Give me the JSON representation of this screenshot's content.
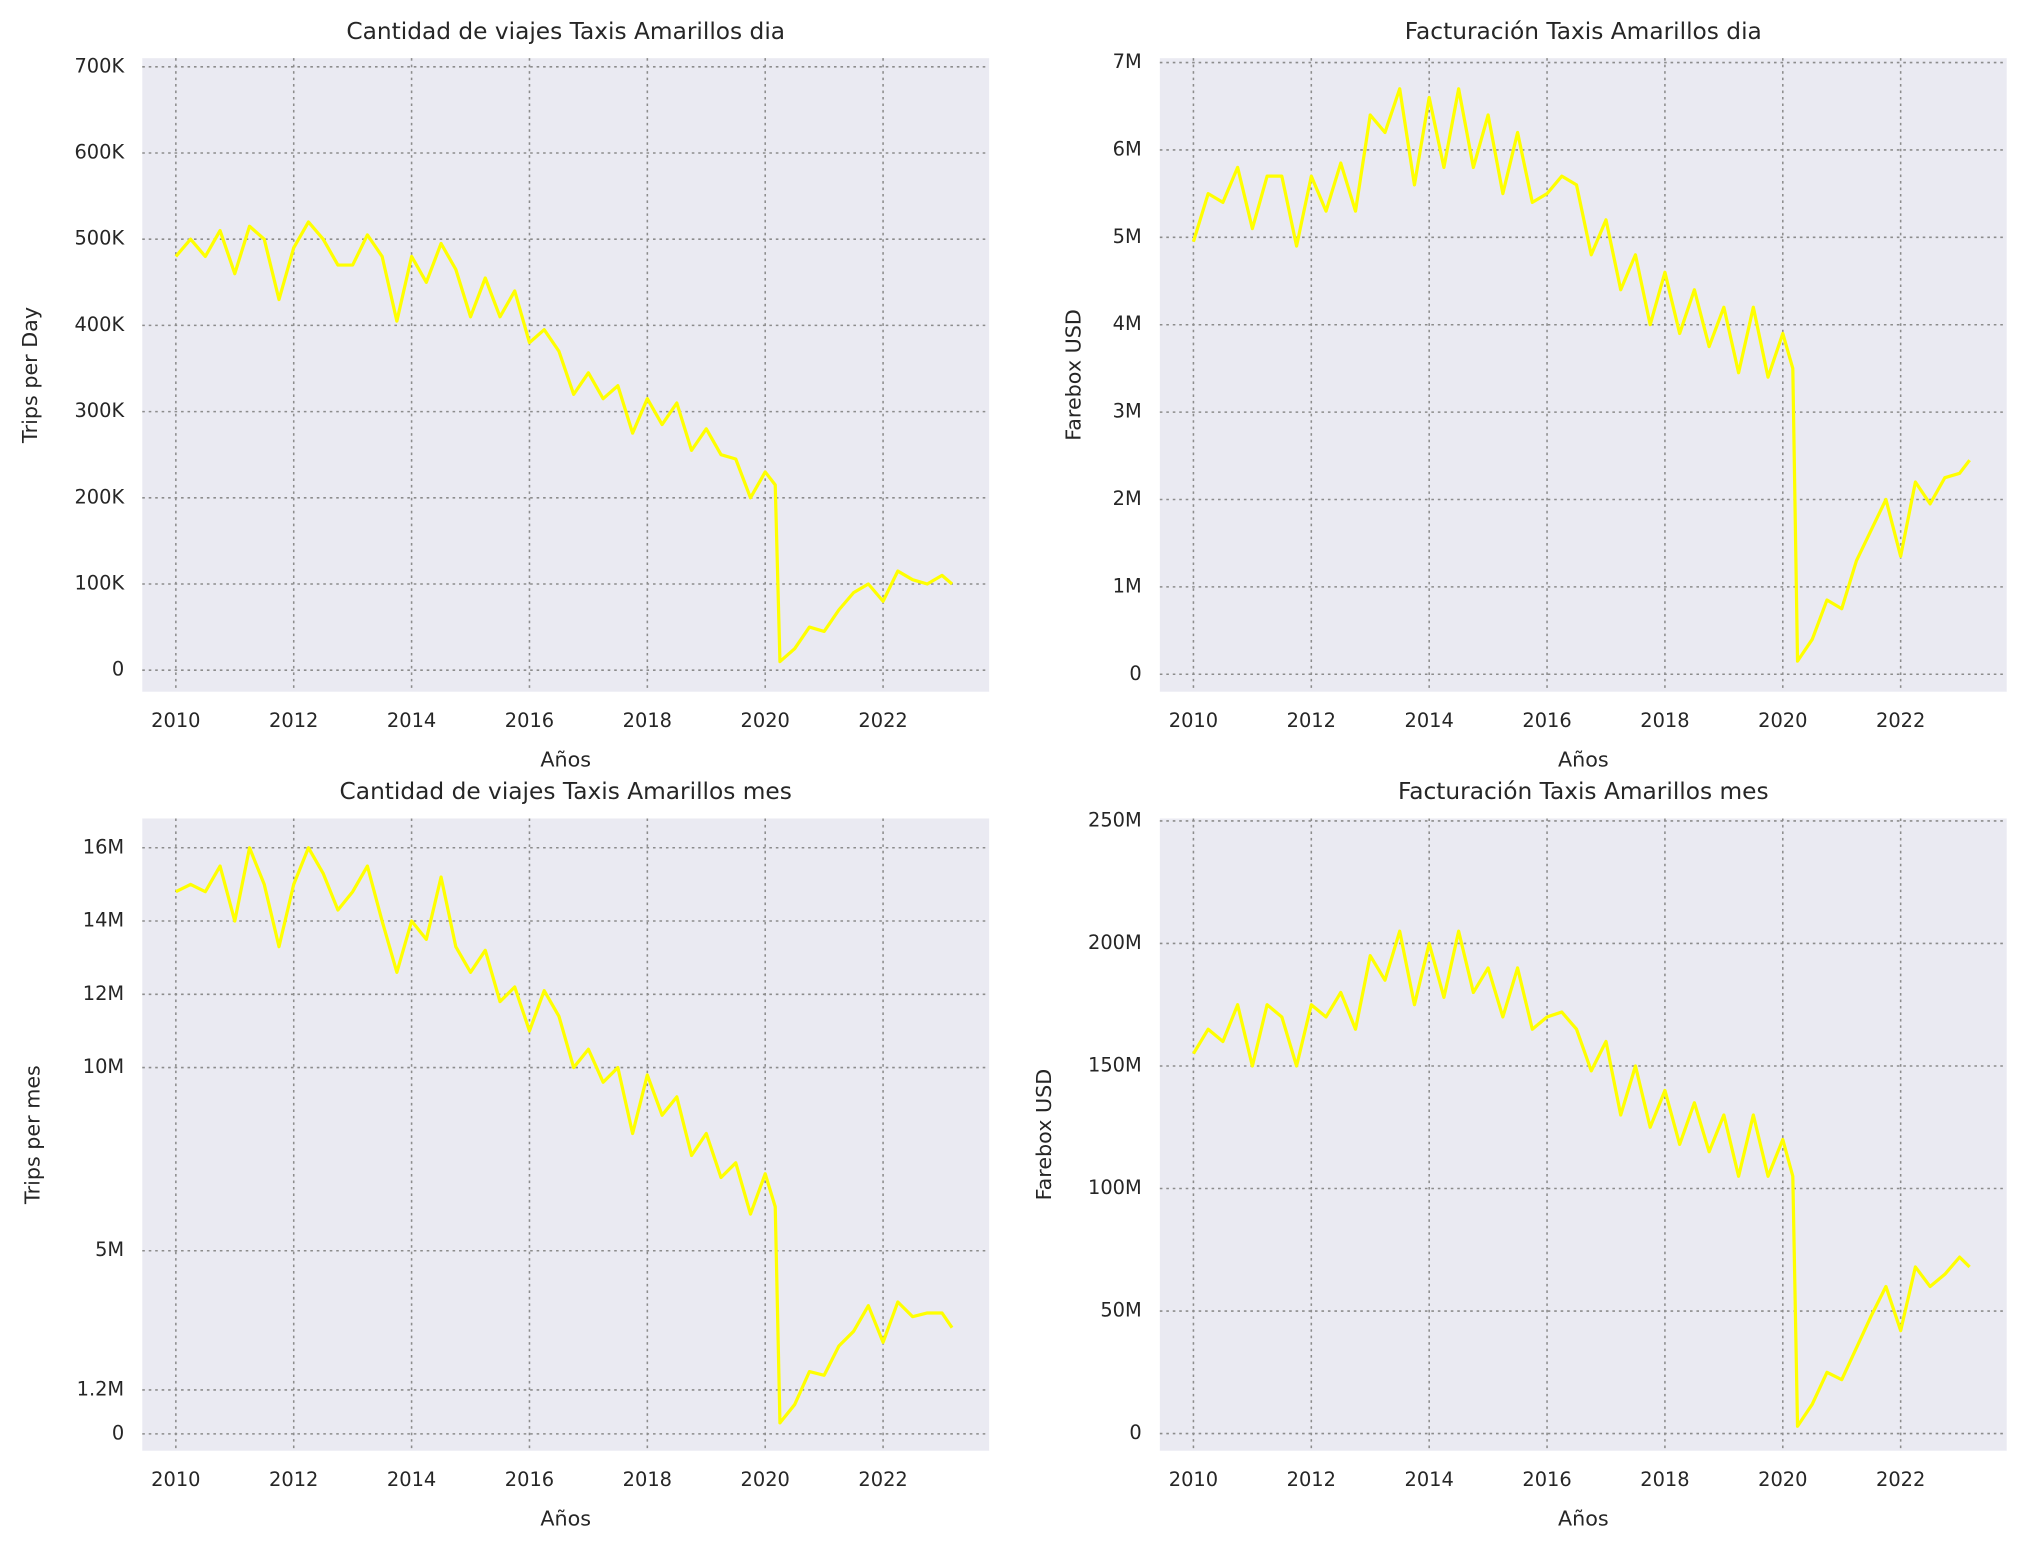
{
  "chart_data": [
    {
      "type": "line",
      "title": "Cantidad de viajes Taxis Amarillos dia",
      "xlabel": "Años",
      "ylabel": "Trips per Day",
      "color": "#ffff00",
      "grid": true,
      "x": [
        2010,
        2010.25,
        2010.5,
        2010.75,
        2011,
        2011.25,
        2011.5,
        2011.75,
        2012,
        2012.25,
        2012.5,
        2012.75,
        2013,
        2013.25,
        2013.5,
        2013.75,
        2014,
        2014.25,
        2014.5,
        2014.75,
        2015,
        2015.25,
        2015.5,
        2015.75,
        2016,
        2016.25,
        2016.5,
        2016.75,
        2017,
        2017.25,
        2017.5,
        2017.75,
        2018,
        2018.25,
        2018.5,
        2018.75,
        2019,
        2019.25,
        2019.5,
        2019.75,
        2020,
        2020.17,
        2020.25,
        2020.5,
        2020.75,
        2021,
        2021.25,
        2021.5,
        2021.75,
        2022,
        2022.25,
        2022.5,
        2022.75,
        2023,
        2023.17
      ],
      "values": [
        480000,
        500000,
        480000,
        510000,
        460000,
        515000,
        500000,
        430000,
        490000,
        520000,
        500000,
        470000,
        470000,
        505000,
        480000,
        405000,
        480000,
        450000,
        495000,
        465000,
        410000,
        455000,
        410000,
        440000,
        380000,
        395000,
        370000,
        320000,
        345000,
        315000,
        330000,
        275000,
        315000,
        285000,
        310000,
        255000,
        280000,
        250000,
        245000,
        200000,
        230000,
        215000,
        10000,
        25000,
        50000,
        45000,
        70000,
        90000,
        100000,
        80000,
        115000,
        105000,
        100000,
        110000,
        100000
      ],
      "xlim": [
        2009.43,
        2023.8
      ],
      "xticks": [
        2010,
        2012,
        2014,
        2016,
        2018,
        2020,
        2022
      ],
      "ylim": [
        -25000,
        710000
      ],
      "yticks": [
        0,
        {
          "value": 100000,
          "label": "100K"
        },
        {
          "value": 200000,
          "label": "200K"
        },
        {
          "value": 300000,
          "label": "300K"
        },
        {
          "value": 400000,
          "label": "400K"
        },
        {
          "value": 500000,
          "label": "500K"
        },
        {
          "value": 600000,
          "label": "600K"
        },
        {
          "value": 700000,
          "label": "700K"
        }
      ]
    },
    {
      "type": "line",
      "title": "Facturación Taxis Amarillos dia",
      "xlabel": "Años",
      "ylabel": "Farebox USD",
      "color": "#ffff00",
      "grid": true,
      "x": [
        2010,
        2010.25,
        2010.5,
        2010.75,
        2011,
        2011.25,
        2011.5,
        2011.75,
        2012,
        2012.25,
        2012.5,
        2012.75,
        2013,
        2013.25,
        2013.5,
        2013.75,
        2014,
        2014.25,
        2014.5,
        2014.75,
        2015,
        2015.25,
        2015.5,
        2015.75,
        2016,
        2016.25,
        2016.5,
        2016.75,
        2017,
        2017.25,
        2017.5,
        2017.75,
        2018,
        2018.25,
        2018.5,
        2018.75,
        2019,
        2019.25,
        2019.5,
        2019.75,
        2020,
        2020.17,
        2020.25,
        2020.5,
        2020.75,
        2021,
        2021.25,
        2021.5,
        2021.75,
        2022,
        2022.25,
        2022.5,
        2022.75,
        2023,
        2023.17
      ],
      "values": [
        4950000,
        5500000,
        5400000,
        5800000,
        5100000,
        5700000,
        5700000,
        4900000,
        5700000,
        5300000,
        5850000,
        5300000,
        6400000,
        6200000,
        6700000,
        5600000,
        6600000,
        5800000,
        6700000,
        5800000,
        6400000,
        5500000,
        6200000,
        5400000,
        5500000,
        5700000,
        5600000,
        4800000,
        5200000,
        4400000,
        4800000,
        4000000,
        4600000,
        3900000,
        4400000,
        3750000,
        4200000,
        3450000,
        4200000,
        3400000,
        3900000,
        3500000,
        150000,
        400000,
        850000,
        750000,
        1300000,
        1650000,
        2000000,
        1350000,
        2200000,
        1950000,
        2250000,
        2300000,
        2450000
      ],
      "xlim": [
        2009.43,
        2023.8
      ],
      "xticks": [
        2010,
        2012,
        2014,
        2016,
        2018,
        2020,
        2022
      ],
      "ylim": [
        -200000,
        7050000
      ],
      "yticks": [
        0,
        {
          "value": 1000000,
          "label": "1M"
        },
        {
          "value": 2000000,
          "label": "2M"
        },
        {
          "value": 3000000,
          "label": "3M"
        },
        {
          "value": 4000000,
          "label": "4M"
        },
        {
          "value": 5000000,
          "label": "5M"
        },
        {
          "value": 6000000,
          "label": "6M"
        },
        {
          "value": 7000000,
          "label": "7M"
        }
      ]
    },
    {
      "type": "line",
      "title": "Cantidad de viajes Taxis Amarillos mes",
      "xlabel": "Años",
      "ylabel": "Trips per mes",
      "color": "#ffff00",
      "grid": true,
      "x": [
        2010,
        2010.25,
        2010.5,
        2010.75,
        2011,
        2011.25,
        2011.5,
        2011.75,
        2012,
        2012.25,
        2012.5,
        2012.75,
        2013,
        2013.25,
        2013.5,
        2013.75,
        2014,
        2014.25,
        2014.5,
        2014.75,
        2015,
        2015.25,
        2015.5,
        2015.75,
        2016,
        2016.25,
        2016.5,
        2016.75,
        2017,
        2017.25,
        2017.5,
        2017.75,
        2018,
        2018.25,
        2018.5,
        2018.75,
        2019,
        2019.25,
        2019.5,
        2019.75,
        2020,
        2020.17,
        2020.25,
        2020.5,
        2020.75,
        2021,
        2021.25,
        2021.5,
        2021.75,
        2022,
        2022.25,
        2022.5,
        2022.75,
        2023,
        2023.17
      ],
      "values": [
        14800000,
        15000000,
        14800000,
        15500000,
        14000000,
        16000000,
        15000000,
        13300000,
        15000000,
        16000000,
        15300000,
        14300000,
        14800000,
        15500000,
        14000000,
        12600000,
        14000000,
        13500000,
        15200000,
        13300000,
        12600000,
        13200000,
        11800000,
        12200000,
        11000000,
        12100000,
        11400000,
        10000000,
        10500000,
        9600000,
        10000000,
        8200000,
        9800000,
        8700000,
        9200000,
        7600000,
        8200000,
        7000000,
        7400000,
        6000000,
        7100000,
        6200000,
        300000,
        800000,
        1700000,
        1600000,
        2400000,
        2800000,
        3500000,
        2500000,
        3600000,
        3200000,
        3300000,
        3300000,
        2900000
      ],
      "xlim": [
        2009.43,
        2023.8
      ],
      "xticks": [
        2010,
        2012,
        2014,
        2016,
        2018,
        2020,
        2022
      ],
      "ylim": [
        -460000,
        16800000
      ],
      "yticks": [
        0,
        {
          "value": 1200000,
          "label": "1.2M"
        },
        {
          "value": 5000000,
          "label": "5M"
        },
        {
          "value": 10000000,
          "label": "10M"
        },
        {
          "value": 12000000,
          "label": "12M"
        },
        {
          "value": 14000000,
          "label": "14M"
        },
        {
          "value": 16000000,
          "label": "16M"
        }
      ]
    },
    {
      "type": "line",
      "title": "Facturación Taxis Amarillos mes",
      "xlabel": "Años",
      "ylabel": "Farebox USD",
      "color": "#ffff00",
      "grid": true,
      "x": [
        2010,
        2010.25,
        2010.5,
        2010.75,
        2011,
        2011.25,
        2011.5,
        2011.75,
        2012,
        2012.25,
        2012.5,
        2012.75,
        2013,
        2013.25,
        2013.5,
        2013.75,
        2014,
        2014.25,
        2014.5,
        2014.75,
        2015,
        2015.25,
        2015.5,
        2015.75,
        2016,
        2016.25,
        2016.5,
        2016.75,
        2017,
        2017.25,
        2017.5,
        2017.75,
        2018,
        2018.25,
        2018.5,
        2018.75,
        2019,
        2019.25,
        2019.5,
        2019.75,
        2020,
        2020.17,
        2020.25,
        2020.5,
        2020.75,
        2021,
        2021.25,
        2021.5,
        2021.75,
        2022,
        2022.25,
        2022.5,
        2022.75,
        2023,
        2023.17
      ],
      "values": [
        155000000,
        165000000,
        160000000,
        175000000,
        150000000,
        175000000,
        170000000,
        150000000,
        175000000,
        170000000,
        180000000,
        165000000,
        195000000,
        185000000,
        205000000,
        175000000,
        200000000,
        178000000,
        205000000,
        180000000,
        190000000,
        170000000,
        190000000,
        165000000,
        170000000,
        172000000,
        165000000,
        148000000,
        160000000,
        130000000,
        150000000,
        125000000,
        140000000,
        118000000,
        135000000,
        115000000,
        130000000,
        105000000,
        130000000,
        105000000,
        120000000,
        105000000,
        3000000,
        12000000,
        25000000,
        22000000,
        35000000,
        48000000,
        60000000,
        42000000,
        68000000,
        60000000,
        65000000,
        72000000,
        68000000
      ],
      "xlim": [
        2009.43,
        2023.8
      ],
      "xticks": [
        2010,
        2012,
        2014,
        2016,
        2018,
        2020,
        2022
      ],
      "ylim": [
        -7000000,
        251000000
      ],
      "yticks": [
        0,
        {
          "value": 50000000,
          "label": "50M"
        },
        {
          "value": 100000000,
          "label": "100M"
        },
        {
          "value": 150000000,
          "label": "150M"
        },
        {
          "value": 200000000,
          "label": "200M"
        },
        {
          "value": 250000000,
          "label": "250M"
        }
      ]
    }
  ]
}
